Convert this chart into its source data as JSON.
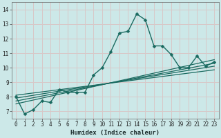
{
  "xlabel": "Humidex (Indice chaleur)",
  "bg_color": "#cce8e8",
  "grid_color": "#d8c8c8",
  "line_color": "#1a6a60",
  "xlim": [
    -0.5,
    23.5
  ],
  "ylim": [
    6.5,
    14.5
  ],
  "xticks": [
    0,
    1,
    2,
    3,
    4,
    5,
    6,
    7,
    8,
    9,
    10,
    11,
    12,
    13,
    14,
    15,
    16,
    17,
    18,
    19,
    20,
    21,
    22,
    23
  ],
  "yticks": [
    7,
    8,
    9,
    10,
    11,
    12,
    13,
    14
  ],
  "series": [
    {
      "x": [
        0,
        1,
        2,
        3,
        4,
        5,
        6,
        7,
        8,
        9,
        10,
        11,
        12,
        13,
        14,
        15,
        16,
        17,
        18,
        19,
        20,
        21,
        22,
        23
      ],
      "y": [
        8.0,
        6.8,
        7.1,
        7.7,
        7.6,
        8.5,
        8.3,
        8.3,
        8.3,
        9.5,
        10.0,
        11.1,
        12.4,
        12.5,
        13.7,
        13.3,
        11.5,
        11.5,
        10.9,
        10.0,
        10.0,
        10.8,
        10.1,
        10.4
      ],
      "has_marker": true,
      "markersize": 2.5,
      "linewidth": 1.0
    },
    {
      "x": [
        0,
        23
      ],
      "y": [
        7.5,
        10.55
      ],
      "has_marker": false,
      "linewidth": 0.9
    },
    {
      "x": [
        0,
        23
      ],
      "y": [
        7.7,
        10.3
      ],
      "has_marker": false,
      "linewidth": 0.9
    },
    {
      "x": [
        0,
        23
      ],
      "y": [
        7.9,
        10.1
      ],
      "has_marker": false,
      "linewidth": 0.9
    },
    {
      "x": [
        0,
        23
      ],
      "y": [
        8.1,
        9.85
      ],
      "has_marker": false,
      "linewidth": 0.9
    }
  ]
}
